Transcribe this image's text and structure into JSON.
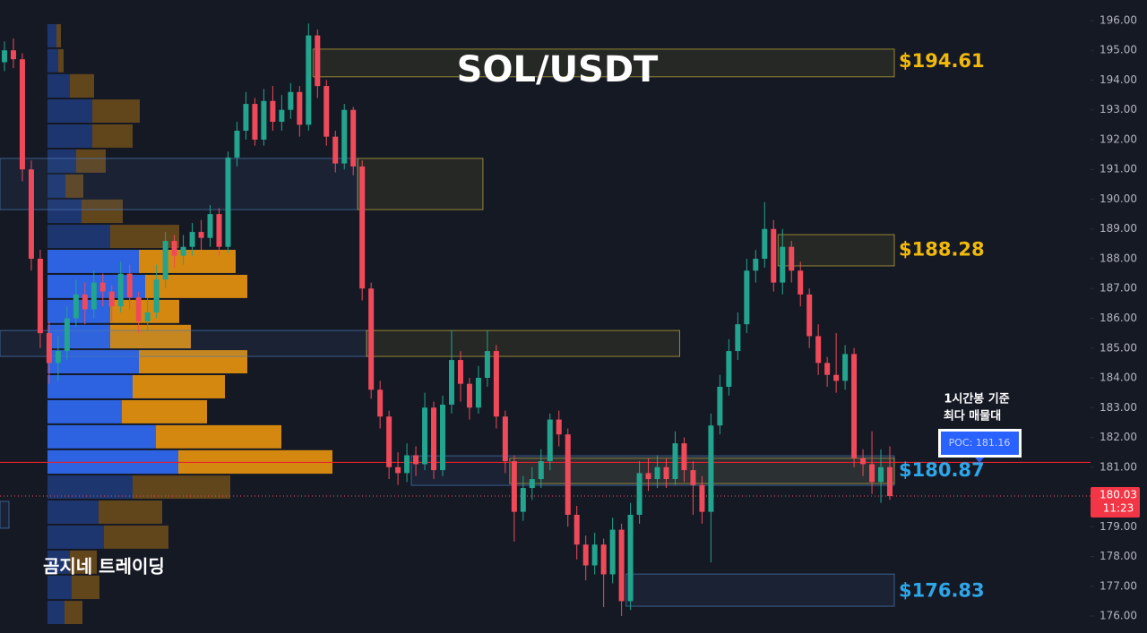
{
  "chart_data": {
    "type": "candlestick",
    "title": "SOL/USDT",
    "watermark": "곰지네 트레이딩",
    "ylim": [
      175.43,
      196.69
    ],
    "yticks": [
      {
        "value": 176,
        "label": "176.00"
      },
      {
        "value": 177,
        "label": "177.00"
      },
      {
        "value": 178,
        "label": "178.00"
      },
      {
        "value": 179,
        "label": "179.00"
      },
      {
        "value": 180,
        "label": "180.00"
      },
      {
        "value": 181,
        "label": "181.00"
      },
      {
        "value": 182,
        "label": "182.00"
      },
      {
        "value": 183,
        "label": "183.00"
      },
      {
        "value": 184,
        "label": "184.00"
      },
      {
        "value": 185,
        "label": "185.00"
      },
      {
        "value": 186,
        "label": "186.00"
      },
      {
        "value": 187,
        "label": "187.00"
      },
      {
        "value": 188,
        "label": "188.00"
      },
      {
        "value": 189,
        "label": "189.00"
      },
      {
        "value": 190,
        "label": "190.00"
      },
      {
        "value": 191,
        "label": "191.00"
      },
      {
        "value": 192,
        "label": "192.00"
      },
      {
        "value": 193,
        "label": "193.00"
      },
      {
        "value": 194,
        "label": "194.00"
      },
      {
        "value": 195,
        "label": "195.00"
      },
      {
        "value": 196,
        "label": "196.00"
      }
    ],
    "grid": false,
    "up_color": "#22a48e",
    "down_color": "#ef4a5a",
    "candles": {
      "open": [
        194.6,
        195.0,
        194.7,
        191.0,
        188.0,
        185.5,
        184.5,
        184.9,
        186.0,
        186.8,
        186.3,
        187.2,
        186.9,
        186.4,
        187.5,
        186.7,
        185.9,
        186.2,
        187.3,
        188.6,
        188.1,
        188.4,
        188.9,
        188.7,
        189.5,
        188.4,
        191.4,
        192.3,
        193.2,
        192.0,
        193.3,
        192.6,
        193.0,
        193.6,
        192.5,
        195.5,
        193.8,
        192.1,
        191.2,
        193.0,
        191.1,
        187.0,
        183.6,
        182.7,
        181.0,
        180.8,
        181.4,
        181.1,
        183.0,
        180.9,
        183.1,
        184.6,
        183.8,
        183.0,
        184.0,
        184.9,
        182.7,
        181.2,
        179.5,
        180.3,
        180.6,
        181.2,
        182.6,
        182.1,
        179.4,
        178.4,
        177.7,
        178.4,
        177.4,
        178.9,
        176.5,
        179.4,
        180.8,
        180.6,
        181.0,
        180.6,
        181.8,
        180.9,
        180.4,
        179.5,
        182.4,
        183.7,
        184.9,
        185.8,
        187.6,
        188.0,
        189.0,
        187.2,
        188.4,
        187.6,
        186.8,
        185.4,
        184.5,
        184.1,
        183.9,
        184.8,
        181.3,
        181.1,
        180.5,
        181.0
      ],
      "high": [
        195.3,
        195.4,
        194.9,
        191.3,
        188.3,
        185.9,
        185.4,
        186.4,
        187.3,
        187.2,
        187.6,
        187.5,
        187.1,
        187.9,
        187.8,
        186.9,
        186.7,
        187.8,
        188.9,
        188.8,
        188.8,
        189.2,
        189.3,
        189.8,
        189.7,
        191.6,
        192.6,
        193.6,
        193.4,
        193.7,
        193.8,
        193.5,
        193.9,
        193.8,
        195.9,
        195.7,
        194.0,
        192.3,
        193.2,
        193.1,
        191.3,
        187.2,
        183.9,
        182.9,
        181.5,
        181.8,
        181.7,
        183.5,
        183.2,
        183.4,
        185.6,
        184.9,
        184.0,
        184.4,
        185.6,
        185.1,
        182.9,
        181.4,
        180.7,
        181.0,
        181.6,
        182.8,
        182.9,
        182.3,
        179.7,
        178.7,
        178.8,
        178.6,
        179.3,
        179.1,
        179.8,
        181.2,
        181.3,
        181.4,
        181.3,
        182.2,
        182.0,
        181.2,
        180.7,
        182.8,
        184.1,
        185.3,
        186.2,
        188.0,
        188.3,
        189.9,
        189.3,
        189.0,
        188.6,
        187.9,
        187.0,
        185.8,
        184.7,
        185.5,
        185.1,
        185.0,
        181.6,
        182.2,
        181.6,
        181.7
      ],
      "low": [
        194.3,
        194.4,
        190.6,
        187.6,
        185.0,
        183.8,
        183.9,
        184.6,
        185.7,
        185.8,
        186.0,
        186.4,
        185.9,
        186.2,
        186.3,
        185.5,
        185.6,
        186.0,
        187.0,
        187.7,
        187.8,
        188.1,
        188.3,
        188.4,
        188.1,
        188.2,
        191.1,
        192.0,
        191.8,
        191.8,
        192.3,
        192.3,
        192.7,
        192.1,
        192.3,
        193.4,
        191.8,
        190.9,
        191.0,
        190.8,
        186.6,
        183.3,
        182.3,
        180.6,
        180.4,
        180.5,
        180.7,
        180.9,
        180.6,
        180.7,
        182.8,
        183.2,
        182.6,
        182.8,
        183.7,
        182.3,
        180.8,
        178.5,
        179.2,
        179.9,
        180.3,
        180.9,
        181.7,
        179.0,
        177.9,
        177.2,
        177.4,
        176.3,
        177.1,
        176.0,
        176.2,
        179.1,
        180.2,
        180.3,
        180.3,
        180.4,
        180.5,
        179.4,
        179.1,
        177.8,
        182.1,
        183.4,
        184.6,
        185.5,
        187.2,
        187.7,
        186.9,
        186.8,
        187.2,
        186.4,
        185.0,
        184.1,
        183.7,
        183.5,
        183.6,
        181.0,
        180.7,
        180.1,
        179.8,
        179.9
      ],
      "close": [
        195.0,
        194.7,
        191.0,
        188.0,
        185.5,
        184.5,
        184.9,
        186.0,
        186.8,
        186.3,
        187.2,
        186.9,
        186.4,
        187.5,
        186.7,
        185.9,
        186.2,
        187.3,
        188.6,
        188.1,
        188.4,
        188.9,
        188.7,
        189.5,
        188.4,
        191.4,
        192.3,
        193.2,
        192.0,
        193.3,
        192.6,
        193.0,
        193.6,
        192.5,
        195.5,
        193.8,
        192.1,
        191.2,
        193.0,
        191.1,
        187.0,
        183.6,
        182.7,
        181.0,
        180.8,
        181.4,
        181.1,
        183.0,
        180.9,
        183.1,
        184.6,
        183.8,
        183.0,
        184.0,
        184.9,
        182.7,
        181.2,
        179.5,
        180.3,
        180.6,
        181.2,
        182.6,
        182.1,
        179.4,
        178.4,
        177.7,
        178.4,
        177.4,
        178.9,
        176.5,
        179.4,
        180.8,
        180.6,
        181.0,
        180.6,
        181.8,
        180.9,
        180.4,
        179.5,
        182.4,
        183.7,
        184.9,
        185.8,
        187.6,
        188.0,
        189.0,
        187.2,
        188.4,
        187.6,
        186.8,
        185.4,
        184.5,
        184.1,
        183.9,
        184.8,
        181.3,
        181.1,
        180.5,
        181.0,
        180.03
      ]
    },
    "volume_profile": {
      "bins": [
        195.91,
        195.07,
        194.23,
        193.38,
        192.54,
        191.7,
        190.86,
        190.02,
        189.17,
        188.33,
        187.49,
        186.65,
        185.81,
        184.96,
        184.12,
        183.28,
        182.44,
        181.6,
        180.75,
        179.91,
        179.07,
        178.23,
        177.39,
        176.54,
        175.7
      ],
      "buy": [
        10,
        12,
        25,
        50,
        50,
        32,
        20,
        38,
        70,
        102,
        109,
        70,
        70,
        102,
        95,
        83,
        121,
        146,
        95,
        57,
        63,
        25,
        27,
        19
      ],
      "sell": [
        5,
        6,
        27,
        53,
        45,
        33,
        20,
        46,
        77,
        108,
        114,
        77,
        90,
        121,
        103,
        95,
        140,
        172,
        109,
        71,
        72,
        30,
        31,
        20
      ],
      "buy_color": "#2d62e0",
      "sell_color": "#d4880f",
      "value_area": [
        180.75,
        188.33
      ],
      "xlim": [
        0,
        320
      ]
    },
    "zones": [
      {
        "high": 195.04,
        "low": 194.11,
        "from": 35,
        "to": 100,
        "color": "#c8b03a"
      },
      {
        "high": 191.37,
        "low": 189.65,
        "from": 0,
        "to": 40,
        "color": "#4a7ab8"
      },
      {
        "high": 191.37,
        "low": 189.65,
        "from": 40,
        "to": 54,
        "color": "#c8b03a"
      },
      {
        "high": 188.81,
        "low": 187.76,
        "from": 87,
        "to": 100,
        "color": "#c8b03a"
      },
      {
        "high": 185.59,
        "low": 184.72,
        "from": 0,
        "to": 41,
        "color": "#4a7ab8"
      },
      {
        "high": 185.59,
        "low": 184.72,
        "from": 41,
        "to": 76,
        "color": "#c8b03a"
      },
      {
        "high": 181.38,
        "low": 180.39,
        "from": 46,
        "to": 100,
        "color": "#4a7ab8"
      },
      {
        "high": 181.3,
        "low": 180.45,
        "from": 57,
        "to": 100,
        "color": "#c8b03a"
      },
      {
        "high": 177.41,
        "low": 176.33,
        "from": 70,
        "to": 100,
        "color": "#4a7ab8"
      },
      {
        "high": 179.85,
        "low": 178.95,
        "from": 0,
        "to": 1,
        "color": "#4a7ab8"
      }
    ],
    "levels": [
      {
        "value": 194.61,
        "label": "$194.61",
        "color": "#f0b90b"
      },
      {
        "value": 188.28,
        "label": "$188.28",
        "color": "#f0b90b"
      },
      {
        "value": 180.87,
        "label": "$180.87",
        "color": "#2ea6e8"
      },
      {
        "value": 176.83,
        "label": "$176.83",
        "color": "#2ea6e8"
      }
    ],
    "poc": {
      "value": 181.16,
      "label": "POC: 181.16",
      "color": "#e8202a"
    },
    "annotation": [
      "1시간봉 기준",
      "최다 매물대"
    ],
    "last_price": 180.03,
    "last_time": "11:23"
  }
}
